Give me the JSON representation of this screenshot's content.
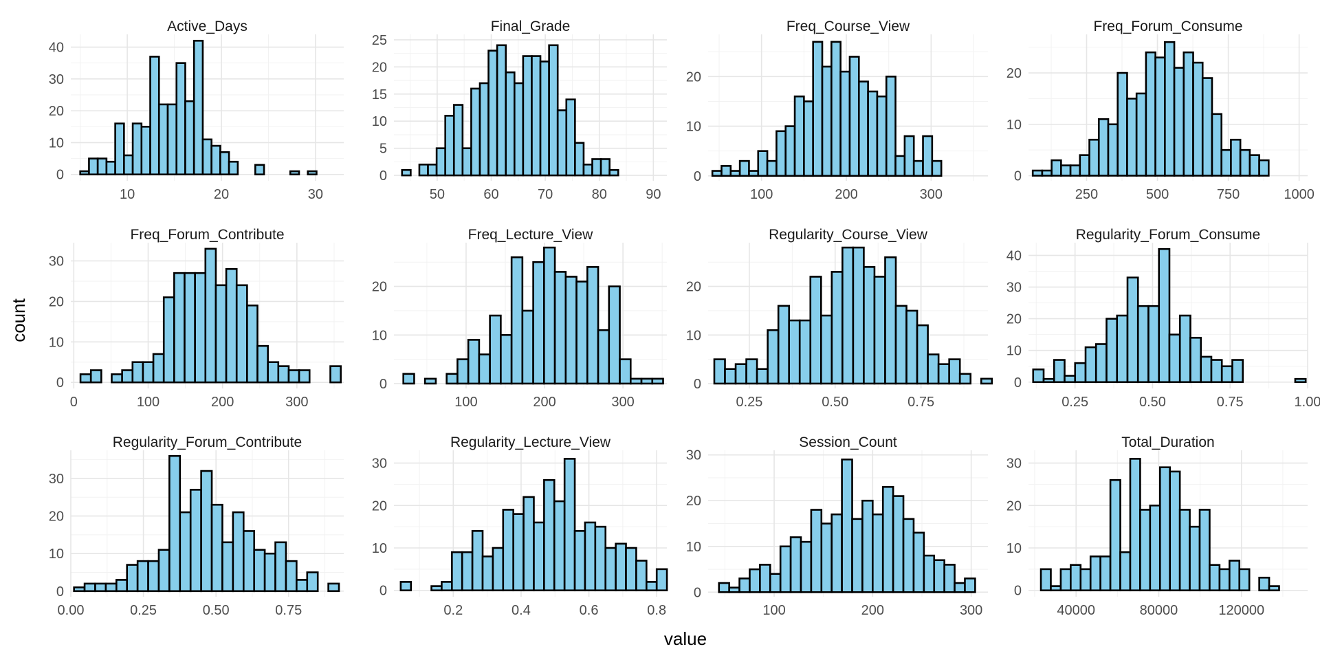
{
  "figure": {
    "xlabel": "value",
    "ylabel": "count",
    "bar_fill": "#87ceeb",
    "bar_outline": "#000000",
    "grid_color": "#ebebeb",
    "background": "#ffffff"
  },
  "chart_data": [
    {
      "type": "bar",
      "title": "Active_Days",
      "bin_start": 5.0,
      "bin_width": 0.93,
      "values": [
        1,
        5,
        5,
        4,
        16,
        6,
        16,
        15,
        37,
        22,
        22,
        35,
        23,
        42,
        11,
        9,
        7,
        4,
        0,
        0,
        3,
        0,
        0,
        0,
        1,
        0,
        1,
        0,
        0,
        0
      ],
      "xlim": [
        4,
        33
      ],
      "xticks": [
        10,
        20,
        30
      ],
      "ylim": [
        -2,
        44
      ],
      "yticks": [
        0,
        10,
        20,
        30,
        40
      ]
    },
    {
      "type": "bar",
      "title": "Final_Grade",
      "bin_start": 43.5,
      "bin_width": 1.6,
      "values": [
        1,
        0,
        2,
        2,
        5,
        11,
        13,
        5,
        16,
        17,
        23,
        24,
        19,
        17,
        22,
        22,
        21,
        24,
        12,
        14,
        6,
        2,
        3,
        3,
        1
      ],
      "xlim": [
        42,
        92.5
      ],
      "xticks": [
        50,
        60,
        70,
        80,
        90
      ],
      "ylim": [
        -1,
        26
      ],
      "yticks": [
        0,
        5,
        10,
        15,
        20,
        25
      ]
    },
    {
      "type": "bar",
      "title": "Freq_Course_View",
      "bin_start": 42,
      "bin_width": 10.8,
      "values": [
        1,
        2,
        1,
        3,
        1,
        5,
        3,
        9,
        10,
        16,
        15,
        27,
        22,
        27,
        21,
        24,
        19,
        17,
        16,
        20,
        4,
        8,
        3,
        8,
        3
      ],
      "xlim": [
        37,
        367
      ],
      "xticks": [
        100,
        200,
        300
      ],
      "ylim": [
        -1,
        28.5
      ],
      "yticks": [
        0,
        10,
        20
      ]
    },
    {
      "type": "bar",
      "title": "Freq_Forum_Consume",
      "bin_start": 60,
      "bin_width": 33.3,
      "values": [
        1,
        1,
        3,
        2,
        2,
        4,
        7,
        11,
        10,
        20,
        15,
        16,
        24,
        23,
        26,
        21,
        24,
        22,
        19,
        12,
        5,
        7,
        5,
        4,
        3
      ],
      "xlim": [
        45,
        1030
      ],
      "xticks": [
        250,
        500,
        750,
        1000
      ],
      "ylim": [
        -1,
        27.5
      ],
      "yticks": [
        0,
        10,
        20
      ]
    },
    {
      "type": "bar",
      "title": "Freq_Forum_Contribute",
      "bin_start": 9,
      "bin_width": 14.0,
      "values": [
        2,
        3,
        0,
        2,
        3,
        5,
        5,
        7,
        21,
        27,
        27,
        27,
        33,
        24,
        28,
        24,
        19,
        9,
        5,
        4,
        3,
        3,
        0,
        0,
        4
      ],
      "xlim": [
        -4,
        363
      ],
      "xticks": [
        0,
        100,
        200,
        300
      ],
      "ylim": [
        -1.5,
        34.5
      ],
      "yticks": [
        0,
        10,
        20,
        30
      ]
    },
    {
      "type": "bar",
      "title": "Freq_Lecture_View",
      "bin_start": 20,
      "bin_width": 13.8,
      "values": [
        2,
        0,
        1,
        0,
        2,
        5,
        9,
        6,
        14,
        10,
        26,
        15,
        25,
        28,
        23,
        22,
        21,
        24,
        11,
        20,
        5,
        1,
        1,
        1
      ],
      "xlim": [
        8,
        356
      ],
      "xticks": [
        100,
        200,
        300
      ],
      "ylim": [
        -1,
        29
      ],
      "yticks": [
        0,
        10,
        20
      ]
    },
    {
      "type": "bar",
      "title": "Regularity_Course_View",
      "bin_start": 0.148,
      "bin_width": 0.0311,
      "values": [
        5,
        3,
        4,
        5,
        3,
        11,
        16,
        13,
        13,
        22,
        14,
        23,
        28,
        28,
        24,
        22,
        26,
        16,
        15,
        12,
        6,
        4,
        5,
        2,
        0,
        1
      ],
      "xlim": [
        0.13,
        0.945
      ],
      "xticks": [
        0.25,
        0.5,
        0.75
      ],
      "xtick_labels": [
        "0.25",
        "0.50",
        "0.75"
      ],
      "ylim": [
        -1,
        29
      ],
      "yticks": [
        0,
        10,
        20
      ]
    },
    {
      "type": "bar",
      "title": "Regularity_Forum_Consume",
      "bin_start": 0.115,
      "bin_width": 0.0338,
      "values": [
        4,
        1,
        7,
        2,
        6,
        11,
        12,
        20,
        21,
        33,
        24,
        24,
        42,
        15,
        21,
        14,
        8,
        7,
        5,
        7,
        0,
        0,
        0,
        0,
        0,
        1
      ],
      "xlim": [
        0.1,
        1.0
      ],
      "xticks": [
        0.25,
        0.5,
        0.75,
        1.0
      ],
      "xtick_labels": [
        "0.25",
        "0.50",
        "0.75",
        "1.00"
      ],
      "ylim": [
        -2,
        44
      ],
      "yticks": [
        0,
        10,
        20,
        30,
        40
      ]
    },
    {
      "type": "bar",
      "title": "Regularity_Forum_Contribute",
      "bin_start": 0.011,
      "bin_width": 0.0365,
      "values": [
        1,
        2,
        2,
        2,
        3,
        7,
        8,
        8,
        11,
        36,
        21,
        27,
        32,
        23,
        13,
        21,
        16,
        11,
        10,
        13,
        8,
        3,
        5,
        0,
        2
      ],
      "xlim": [
        0,
        0.94
      ],
      "xticks": [
        0.0,
        0.25,
        0.5,
        0.75
      ],
      "xtick_labels": [
        "0.00",
        "0.25",
        "0.50",
        "0.75"
      ],
      "ylim": [
        -1.5,
        37.5
      ],
      "yticks": [
        0,
        10,
        20,
        30
      ]
    },
    {
      "type": "bar",
      "title": "Regularity_Lecture_View",
      "bin_start": 0.045,
      "bin_width": 0.0302,
      "values": [
        2,
        0,
        0,
        1,
        2,
        9,
        9,
        14,
        8,
        10,
        19,
        18,
        22,
        16,
        26,
        21,
        31,
        14,
        16,
        15,
        10,
        11,
        10,
        7,
        2,
        5
      ],
      "xlim": [
        0.025,
        0.83
      ],
      "xticks": [
        0.2,
        0.4,
        0.6,
        0.8
      ],
      "xtick_labels": [
        "0.2",
        "0.4",
        "0.6",
        "0.8"
      ],
      "ylim": [
        -1.5,
        33
      ],
      "yticks": [
        0,
        10,
        20,
        30
      ]
    },
    {
      "type": "bar",
      "title": "Session_Count",
      "bin_start": 44,
      "bin_width": 10.4,
      "values": [
        2,
        1,
        3,
        5,
        6,
        4,
        10,
        12,
        11,
        18,
        15,
        17,
        29,
        16,
        20,
        17,
        23,
        21,
        16,
        13,
        8,
        7,
        6,
        2,
        3
      ],
      "xlim": [
        33,
        317
      ],
      "xticks": [
        100,
        200,
        300
      ],
      "ylim": [
        -1,
        31
      ],
      "yticks": [
        0,
        10,
        20,
        30
      ]
    },
    {
      "type": "bar",
      "title": "Total_Duration",
      "bin_start": 23000,
      "bin_width": 4800,
      "values": [
        5,
        1,
        5,
        6,
        5,
        8,
        8,
        26,
        9,
        31,
        19,
        20,
        29,
        28,
        19,
        15,
        19,
        6,
        5,
        7,
        5,
        0,
        3,
        1
      ],
      "xlim": [
        17000,
        152000
      ],
      "xticks": [
        40000,
        80000,
        120000
      ],
      "ylim": [
        -1.5,
        33
      ],
      "yticks": [
        0,
        10,
        20,
        30
      ]
    }
  ]
}
